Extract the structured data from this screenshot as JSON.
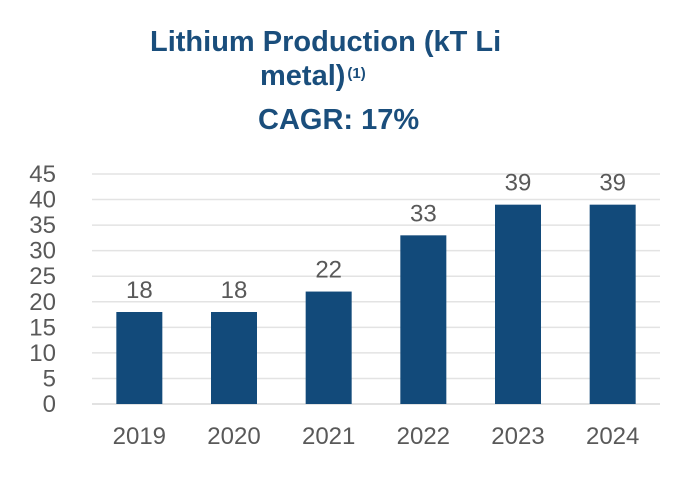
{
  "title": {
    "line1": "Lithium Production (kT Li",
    "line2": "metal)",
    "footnote": "(1)",
    "line3": "CAGR: 17%"
  },
  "colors": {
    "title": "#1a4e7c",
    "bar": "#124a7a",
    "text": "#595959",
    "grid": "#e3e3e3"
  },
  "chart_data": {
    "type": "bar",
    "title": "Lithium Production (kT Li metal)(1)",
    "subtitle": "CAGR: 17%",
    "categories": [
      "2019",
      "2020",
      "2021",
      "2022",
      "2023",
      "2024"
    ],
    "values": [
      18,
      18,
      22,
      33,
      39,
      39
    ],
    "data_labels": [
      "18",
      "18",
      "22",
      "33",
      "39",
      "39"
    ],
    "xlabel": "",
    "ylabel": "",
    "ylim": [
      0,
      45
    ],
    "yticks": [
      "0",
      "5",
      "10",
      "15",
      "20",
      "25",
      "30",
      "35",
      "40",
      "45"
    ],
    "grid": true,
    "legend": "none"
  }
}
